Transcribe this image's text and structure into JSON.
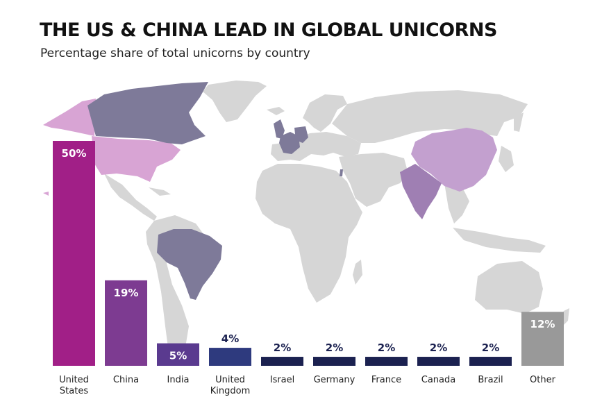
{
  "header": {
    "title": "THE US & CHINA LEAD IN GLOBAL UNICORNS",
    "subtitle": "Percentage share of total unicorns by country"
  },
  "colors": {
    "land": "#d6d6d6",
    "us_land": "#d8a4d4",
    "china_land": "#c3a0cf",
    "india_land": "#9f7fb3",
    "group_land": "#7e7a99",
    "label_on_bar": "#ffffff",
    "label_above_bar": "#1b2150"
  },
  "chart_data": {
    "type": "bar",
    "title": "THE US & CHINA LEAD IN GLOBAL UNICORNS",
    "subtitle": "Percentage share of total unicorns by country",
    "categories": [
      [
        "United",
        "States"
      ],
      [
        "China"
      ],
      [
        "India"
      ],
      [
        "United",
        "Kingdom"
      ],
      [
        "Israel"
      ],
      [
        "Germany"
      ],
      [
        "France"
      ],
      [
        "Canada"
      ],
      [
        "Brazil"
      ],
      [
        "Other"
      ]
    ],
    "values": [
      50,
      19,
      5,
      4,
      2,
      2,
      2,
      2,
      2,
      12
    ],
    "value_labels": [
      "50%",
      "19%",
      "5%",
      "4%",
      "2%",
      "2%",
      "2%",
      "2%",
      "2%",
      "12%"
    ],
    "bar_colors": [
      "#a11f87",
      "#7d3b91",
      "#5a3a8f",
      "#2e3a7e",
      "#1b2150",
      "#1b2150",
      "#1b2150",
      "#1b2150",
      "#1b2150",
      "#999999"
    ],
    "ylim": [
      0,
      50
    ],
    "grid": false,
    "legend": "none"
  }
}
